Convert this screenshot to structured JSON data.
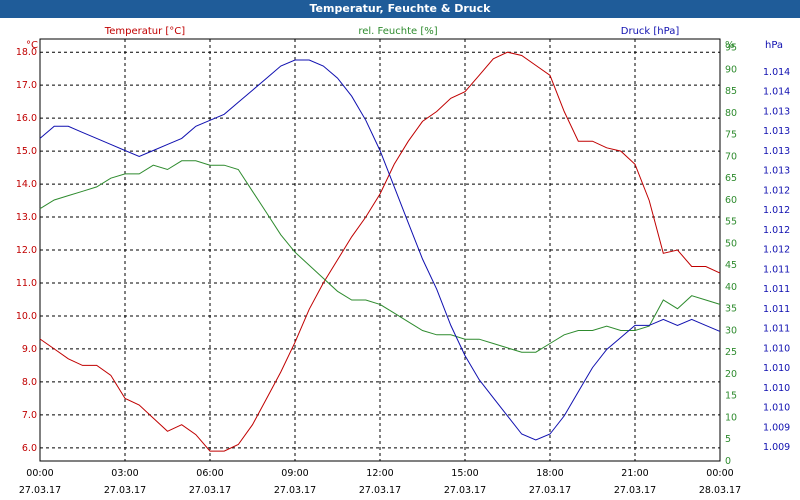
{
  "window": {
    "title": "Temperatur, Feuchte & Druck"
  },
  "chart_data": {
    "type": "line",
    "x": [
      "00:00",
      "00:30",
      "01:00",
      "01:30",
      "02:00",
      "02:30",
      "03:00",
      "03:30",
      "04:00",
      "04:30",
      "05:00",
      "05:30",
      "06:00",
      "06:30",
      "07:00",
      "07:30",
      "08:00",
      "08:30",
      "09:00",
      "09:30",
      "10:00",
      "10:30",
      "11:00",
      "11:30",
      "12:00",
      "12:30",
      "13:00",
      "13:30",
      "14:00",
      "14:30",
      "15:00",
      "15:30",
      "16:00",
      "16:30",
      "17:00",
      "17:30",
      "18:00",
      "18:30",
      "19:00",
      "19:30",
      "20:00",
      "20:30",
      "21:00",
      "21:30",
      "22:00",
      "22:30",
      "23:00",
      "23:30",
      "24:00"
    ],
    "x_ticks": [
      {
        "time": "00:00",
        "date": "27.03.17"
      },
      {
        "time": "03:00",
        "date": "27.03.17"
      },
      {
        "time": "06:00",
        "date": "27.03.17"
      },
      {
        "time": "09:00",
        "date": "27.03.17"
      },
      {
        "time": "12:00",
        "date": "27.03.17"
      },
      {
        "time": "15:00",
        "date": "27.03.17"
      },
      {
        "time": "18:00",
        "date": "27.03.17"
      },
      {
        "time": "21:00",
        "date": "27.03.17"
      },
      {
        "time": "00:00",
        "date": "28.03.17"
      }
    ],
    "grid": true,
    "series": [
      {
        "name": "Temperatur [°C]",
        "unit": "°C",
        "axis": "left",
        "color": "#c00000",
        "ylim": [
          5.6,
          18.4
        ],
        "ticks": [
          "6.0",
          "7.0",
          "8.0",
          "9.0",
          "10.0",
          "11.0",
          "12.0",
          "13.0",
          "14.0",
          "15.0",
          "16.0",
          "17.0",
          "18.0"
        ],
        "values": [
          9.3,
          9.0,
          8.7,
          8.5,
          8.5,
          8.2,
          7.5,
          7.3,
          6.9,
          6.5,
          6.7,
          6.4,
          5.9,
          5.9,
          6.1,
          6.7,
          7.5,
          8.3,
          9.2,
          10.2,
          11.0,
          11.7,
          12.4,
          13.0,
          13.7,
          14.6,
          15.3,
          15.9,
          16.2,
          16.6,
          16.8,
          17.3,
          17.8,
          18.0,
          17.9,
          17.6,
          17.3,
          16.2,
          15.3,
          15.3,
          15.1,
          15.0,
          14.6,
          13.5,
          11.9,
          12.0,
          11.5,
          11.5,
          11.3
        ]
      },
      {
        "name": "rel. Feuchte [%]",
        "unit": "%",
        "axis": "right",
        "color": "#2e8b2e",
        "ylim": [
          0,
          97
        ],
        "ticks": [
          "0",
          "5",
          "10",
          "15",
          "20",
          "25",
          "30",
          "35",
          "40",
          "45",
          "50",
          "55",
          "60",
          "65",
          "70",
          "75",
          "80",
          "85",
          "90",
          "95"
        ],
        "values": [
          58,
          60,
          61,
          62,
          63,
          65,
          66,
          66,
          68,
          67,
          69,
          69,
          68,
          68,
          67,
          62,
          57,
          52,
          48,
          45,
          42,
          39,
          37,
          37,
          36,
          34,
          32,
          30,
          29,
          29,
          28,
          28,
          27,
          26,
          25,
          25,
          27,
          29,
          30,
          30,
          31,
          30,
          30,
          31,
          37,
          35,
          38,
          37,
          36
        ]
      },
      {
        "name": "Druck [hPa]",
        "unit": "hPa",
        "axis": "right2",
        "color": "#1010b0",
        "ticks": [
          "1.009",
          "1.009",
          "1.010",
          "1.010",
          "1.010",
          "1.010",
          "1.011",
          "1.011",
          "1.011",
          "1.011",
          "1.012",
          "1.012",
          "1.012",
          "1.012",
          "1.013",
          "1.013",
          "1.013",
          "1.013",
          "1.014",
          "1.014"
        ],
        "values": [
          1.0134,
          1.0136,
          1.0136,
          1.0135,
          1.0134,
          1.0133,
          1.0132,
          1.0131,
          1.0132,
          1.0133,
          1.0134,
          1.0136,
          1.0137,
          1.0138,
          1.014,
          1.0142,
          1.0144,
          1.0146,
          1.0147,
          1.0147,
          1.0146,
          1.0144,
          1.0141,
          1.0137,
          1.0132,
          1.0126,
          1.012,
          1.0114,
          1.0109,
          1.0103,
          1.0098,
          1.0094,
          1.0091,
          1.0088,
          1.0085,
          1.0084,
          1.0085,
          1.0088,
          1.0092,
          1.0096,
          1.0099,
          1.0101,
          1.0103,
          1.0103,
          1.0104,
          1.0103,
          1.0104,
          1.0103,
          1.0102
        ]
      }
    ]
  },
  "colors": {
    "title_bar": "#1f5c99",
    "grid": "#000000"
  }
}
